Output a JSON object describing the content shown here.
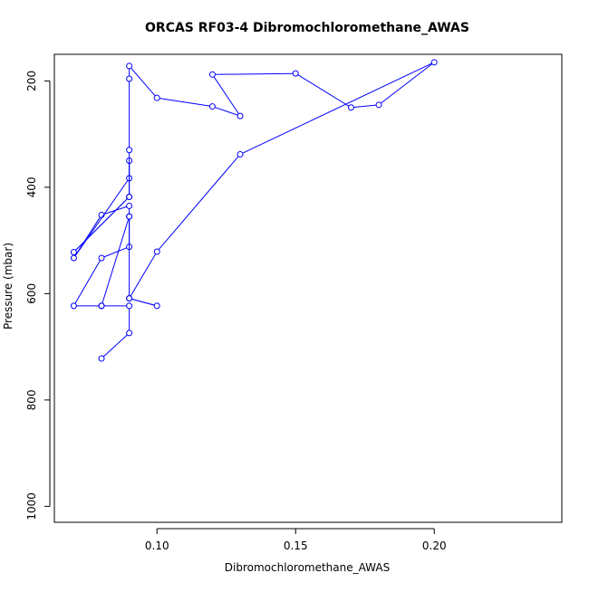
{
  "chart_data": {
    "type": "line",
    "title": "ORCAS RF03-4 Dibromochloromethane_AWAS",
    "xlabel": "Dibromochloromethane_AWAS",
    "ylabel": "Pressure (mbar)",
    "xlim": [
      0.063,
      0.246
    ],
    "ylim": [
      1030,
      150
    ],
    "y_reversed": true,
    "x_ticks": [
      0.1,
      0.15,
      0.2
    ],
    "x_tick_labels": [
      "0.10",
      "0.15",
      "0.20"
    ],
    "y_ticks": [
      200,
      400,
      600,
      800,
      1000
    ],
    "y_tick_labels": [
      "200",
      "400",
      "600",
      "800",
      "1000"
    ],
    "grid": false,
    "line_color": "#0000ff",
    "series": [
      {
        "x": [
          0.08,
          0.09,
          0.09,
          0.08,
          0.07,
          0.08,
          0.09,
          0.09,
          0.09,
          0.08,
          0.07,
          0.09,
          0.09,
          0.09,
          0.07,
          0.09,
          0.09,
          0.09,
          0.09,
          0.1,
          0.12,
          0.13,
          0.12,
          0.15,
          0.17,
          0.18,
          0.2,
          0.13,
          0.1,
          0.09,
          0.1,
          0.09,
          0.09,
          0.08
        ],
        "y": [
          722,
          674,
          623,
          623,
          623,
          533,
          512,
          455,
          435,
          452,
          533,
          383,
          350,
          418,
          522,
          418,
          330,
          196,
          172,
          232,
          248,
          266,
          188,
          186,
          250,
          245,
          165,
          338,
          521,
          609,
          623,
          609,
          455,
          623
        ]
      }
    ]
  }
}
